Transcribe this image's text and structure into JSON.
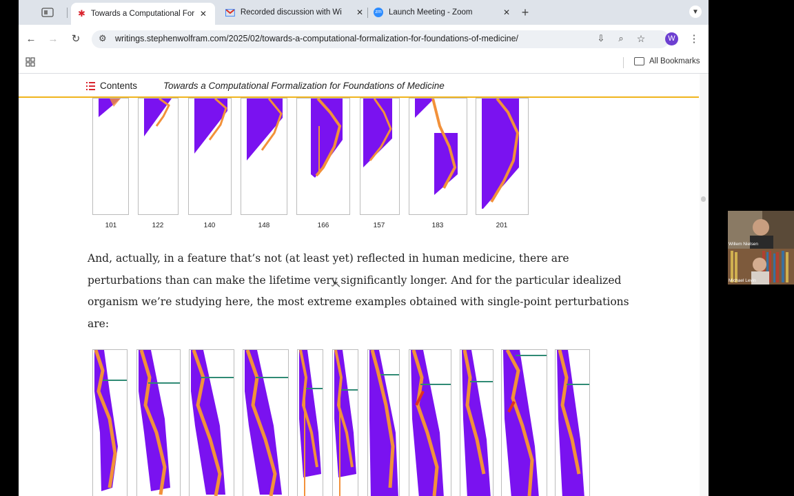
{
  "browser": {
    "tabs": [
      {
        "title": "Towards a Computational Formalization",
        "icon": "wolfram-spikey-icon",
        "active": true
      },
      {
        "title": "Recorded discussion with Wi",
        "icon": "gmail-icon",
        "active": false
      },
      {
        "title": "Launch Meeting - Zoom",
        "icon": "zoom-icon",
        "active": false
      }
    ],
    "url": "writings.stephenwolfram.com/2025/02/towards-a-computational-formalization-for-foundations-of-medicine/",
    "profile_initial": "W",
    "all_bookmarks_label": "All Bookmarks"
  },
  "article": {
    "contents_label": "Contents",
    "title": "Towards a Computational Formalization for Foundations of Medicine",
    "top_row_labels": [
      "101",
      "122",
      "140",
      "148",
      "166",
      "157",
      "183",
      "201"
    ],
    "paragraph": "And, actually, in a feature that’s not (at least yet) reflected in human medicine, there are perturbations than can make the lifetime very significantly longer. And for the particular idealized organism we’re studying here, the most extreme examples obtained with single-point perturbations are:"
  },
  "video_call": {
    "participants": [
      "Willem Nielsen",
      "Michael Levin"
    ]
  },
  "colors": {
    "ca_purple": "#7a12f0",
    "ca_orange": "#f2913a",
    "contents_accent": "#d9232d",
    "arrow_teal": "#2f8a74"
  }
}
